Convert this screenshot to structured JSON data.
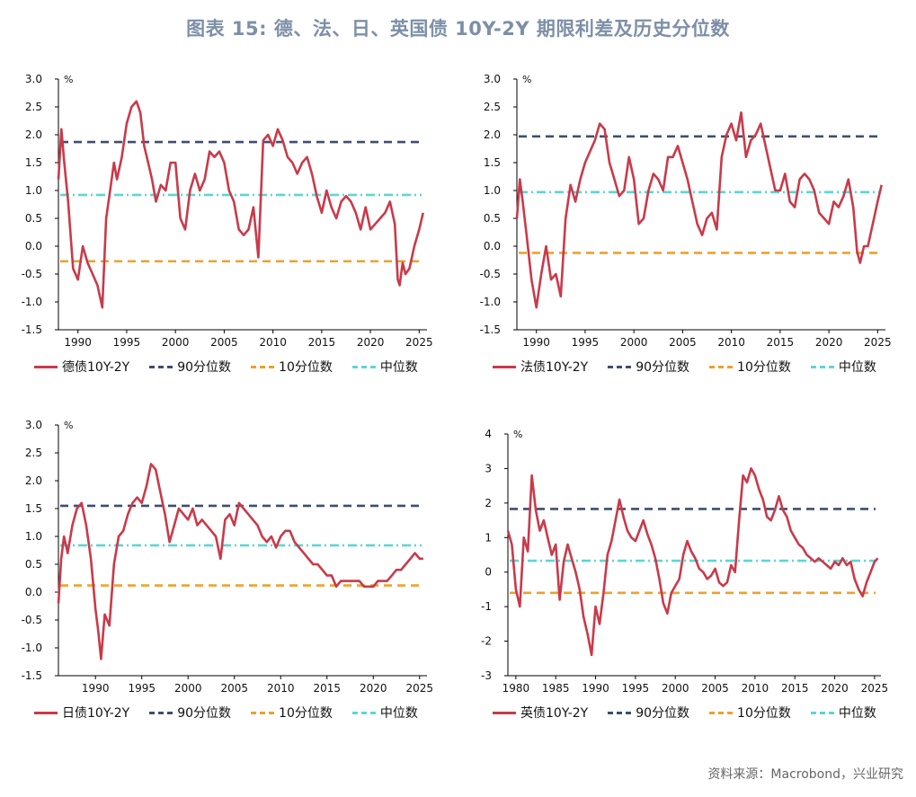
{
  "title": "图表 15: 德、法、日、英国债 10Y-2Y 期限利差及历史分位数",
  "source": "资料来源：Macrobond，兴业研究",
  "colors": {
    "series": "#c93a4a",
    "p90": "#3f4e6e",
    "p10": "#f0a02a",
    "median": "#5ed6d2"
  },
  "chart_data": [
    {
      "type": "line",
      "unit": "%",
      "ylim": [
        -1.5,
        3.0
      ],
      "yticks": [
        "3.0",
        "2.5",
        "2.0",
        "1.5",
        "1.0",
        "0.5",
        "0.0",
        "-0.5",
        "-1.0",
        "-1.5"
      ],
      "xlim": [
        1988.0,
        2025.8
      ],
      "xticks": [
        "1990",
        "1995",
        "2000",
        "2005",
        "2010",
        "2015",
        "2020",
        "2025"
      ],
      "legend": [
        "德债10Y-2Y",
        "90分位数",
        "10分位数",
        "中位数"
      ],
      "p90": 1.87,
      "p10": -0.27,
      "median": 0.92,
      "x": [
        1988.0,
        1988.3,
        1988.6,
        1989.0,
        1989.5,
        1990.0,
        1990.5,
        1991.0,
        1991.5,
        1992.0,
        1992.5,
        1992.9,
        1993.3,
        1993.7,
        1994.0,
        1994.5,
        1995.0,
        1995.5,
        1996.0,
        1996.4,
        1996.8,
        1997.2,
        1997.6,
        1998.0,
        1998.5,
        1999.0,
        1999.5,
        2000.0,
        2000.5,
        2001.0,
        2001.5,
        2002.0,
        2002.5,
        2003.0,
        2003.5,
        2004.0,
        2004.5,
        2005.0,
        2005.5,
        2006.0,
        2006.5,
        2007.0,
        2007.5,
        2008.0,
        2008.5,
        2009.0,
        2009.5,
        2010.0,
        2010.5,
        2011.0,
        2011.5,
        2012.0,
        2012.5,
        2013.0,
        2013.5,
        2014.0,
        2014.5,
        2015.0,
        2015.5,
        2016.0,
        2016.5,
        2017.0,
        2017.5,
        2018.0,
        2018.5,
        2019.0,
        2019.5,
        2020.0,
        2020.5,
        2021.0,
        2021.5,
        2022.0,
        2022.5,
        2022.8,
        2023.0,
        2023.3,
        2023.6,
        2024.0,
        2024.5,
        2025.0,
        2025.4
      ],
      "y": [
        1.2,
        2.1,
        1.5,
        0.8,
        -0.4,
        -0.6,
        0.0,
        -0.3,
        -0.5,
        -0.7,
        -1.1,
        0.5,
        1.0,
        1.5,
        1.2,
        1.6,
        2.2,
        2.5,
        2.6,
        2.4,
        1.8,
        1.5,
        1.2,
        0.8,
        1.1,
        1.0,
        1.5,
        1.5,
        0.5,
        0.3,
        1.0,
        1.3,
        1.0,
        1.2,
        1.7,
        1.6,
        1.7,
        1.5,
        1.0,
        0.8,
        0.3,
        0.2,
        0.3,
        0.7,
        -0.2,
        1.9,
        2.0,
        1.8,
        2.1,
        1.9,
        1.6,
        1.5,
        1.3,
        1.5,
        1.6,
        1.3,
        0.9,
        0.6,
        1.0,
        0.7,
        0.5,
        0.8,
        0.9,
        0.8,
        0.6,
        0.3,
        0.7,
        0.3,
        0.4,
        0.5,
        0.6,
        0.8,
        0.4,
        -0.6,
        -0.7,
        -0.3,
        -0.5,
        -0.4,
        0.0,
        0.3,
        0.6
      ]
    },
    {
      "type": "line",
      "unit": "%",
      "ylim": [
        -1.5,
        3.0
      ],
      "yticks": [
        "3.0",
        "2.5",
        "2.0",
        "1.5",
        "1.0",
        "0.5",
        "0.0",
        "-0.5",
        "-1.0",
        "-1.5"
      ],
      "xlim": [
        1988.0,
        2025.8
      ],
      "xticks": [
        "1990",
        "1995",
        "2000",
        "2005",
        "2010",
        "2015",
        "2020",
        "2025"
      ],
      "legend": [
        "法债10Y-2Y",
        "90分位数",
        "10分位数",
        "中位数"
      ],
      "p90": 1.97,
      "p10": -0.12,
      "median": 0.97,
      "x": [
        1988.0,
        1988.3,
        1988.6,
        1989.0,
        1989.5,
        1990.0,
        1990.5,
        1991.0,
        1991.5,
        1992.0,
        1992.5,
        1993.0,
        1993.5,
        1994.0,
        1994.5,
        1995.0,
        1995.5,
        1996.0,
        1996.5,
        1997.0,
        1997.5,
        1998.0,
        1998.5,
        1999.0,
        1999.5,
        2000.0,
        2000.5,
        2001.0,
        2001.5,
        2002.0,
        2002.5,
        2003.0,
        2003.5,
        2004.0,
        2004.5,
        2005.0,
        2005.5,
        2006.0,
        2006.5,
        2007.0,
        2007.5,
        2008.0,
        2008.5,
        2009.0,
        2009.5,
        2010.0,
        2010.5,
        2011.0,
        2011.5,
        2012.0,
        2012.5,
        2013.0,
        2013.5,
        2014.0,
        2014.5,
        2015.0,
        2015.5,
        2016.0,
        2016.5,
        2017.0,
        2017.5,
        2018.0,
        2018.5,
        2019.0,
        2019.5,
        2020.0,
        2020.5,
        2021.0,
        2021.5,
        2022.0,
        2022.5,
        2022.9,
        2023.2,
        2023.6,
        2024.0,
        2024.5,
        2025.0,
        2025.4
      ],
      "y": [
        0.5,
        1.2,
        0.8,
        0.2,
        -0.6,
        -1.1,
        -0.5,
        0.0,
        -0.6,
        -0.5,
        -0.9,
        0.5,
        1.1,
        0.8,
        1.2,
        1.5,
        1.7,
        1.9,
        2.2,
        2.1,
        1.5,
        1.2,
        0.9,
        1.0,
        1.6,
        1.2,
        0.4,
        0.5,
        1.0,
        1.3,
        1.2,
        1.0,
        1.6,
        1.6,
        1.8,
        1.5,
        1.2,
        0.8,
        0.4,
        0.2,
        0.5,
        0.6,
        0.3,
        1.6,
        2.0,
        2.2,
        1.9,
        2.4,
        1.6,
        1.9,
        2.0,
        2.2,
        1.8,
        1.4,
        1.0,
        1.0,
        1.3,
        0.8,
        0.7,
        1.2,
        1.3,
        1.2,
        1.0,
        0.6,
        0.5,
        0.4,
        0.8,
        0.7,
        0.9,
        1.2,
        0.7,
        -0.1,
        -0.3,
        0.0,
        0.0,
        0.4,
        0.8,
        1.1
      ]
    },
    {
      "type": "line",
      "unit": "%",
      "ylim": [
        -1.5,
        3.0
      ],
      "yticks": [
        "3.0",
        "2.5",
        "2.0",
        "1.5",
        "1.0",
        "0.5",
        "0.0",
        "-0.5",
        "-1.0",
        "-1.5"
      ],
      "xlim": [
        1986.0,
        2025.8
      ],
      "xticks": [
        "1990",
        "1995",
        "2000",
        "2005",
        "2010",
        "2015",
        "2020",
        "2025"
      ],
      "legend": [
        "日债10Y-2Y",
        "90分位数",
        "10分位数",
        "中位数"
      ],
      "p90": 1.55,
      "p10": 0.12,
      "median": 0.84,
      "x": [
        1986.0,
        1986.3,
        1986.6,
        1987.0,
        1987.5,
        1988.0,
        1988.5,
        1989.0,
        1989.5,
        1990.0,
        1990.3,
        1990.6,
        1991.0,
        1991.5,
        1992.0,
        1992.5,
        1993.0,
        1993.5,
        1994.0,
        1994.5,
        1995.0,
        1995.5,
        1996.0,
        1996.5,
        1997.0,
        1997.5,
        1998.0,
        1998.5,
        1999.0,
        1999.5,
        2000.0,
        2000.5,
        2001.0,
        2001.5,
        2002.0,
        2002.5,
        2003.0,
        2003.5,
        2004.0,
        2004.5,
        2005.0,
        2005.5,
        2006.0,
        2006.5,
        2007.0,
        2007.5,
        2008.0,
        2008.5,
        2009.0,
        2009.5,
        2010.0,
        2010.5,
        2011.0,
        2011.5,
        2012.0,
        2012.5,
        2013.0,
        2013.5,
        2014.0,
        2014.5,
        2015.0,
        2015.5,
        2016.0,
        2016.5,
        2017.0,
        2017.5,
        2018.0,
        2018.5,
        2019.0,
        2019.5,
        2020.0,
        2020.5,
        2021.0,
        2021.5,
        2022.0,
        2022.5,
        2023.0,
        2023.5,
        2024.0,
        2024.5,
        2025.0,
        2025.4
      ],
      "y": [
        -0.2,
        0.6,
        1.0,
        0.7,
        1.2,
        1.5,
        1.6,
        1.2,
        0.6,
        -0.3,
        -0.7,
        -1.2,
        -0.4,
        -0.6,
        0.5,
        1.0,
        1.1,
        1.4,
        1.6,
        1.7,
        1.6,
        1.9,
        2.3,
        2.2,
        1.8,
        1.4,
        0.9,
        1.2,
        1.5,
        1.4,
        1.3,
        1.5,
        1.2,
        1.3,
        1.2,
        1.1,
        1.0,
        0.6,
        1.3,
        1.4,
        1.2,
        1.6,
        1.5,
        1.4,
        1.3,
        1.2,
        1.0,
        0.9,
        1.0,
        0.8,
        1.0,
        1.1,
        1.1,
        0.9,
        0.8,
        0.7,
        0.6,
        0.5,
        0.5,
        0.4,
        0.3,
        0.3,
        0.1,
        0.2,
        0.2,
        0.2,
        0.2,
        0.2,
        0.1,
        0.1,
        0.1,
        0.2,
        0.2,
        0.2,
        0.3,
        0.4,
        0.4,
        0.5,
        0.6,
        0.7,
        0.6,
        0.6
      ]
    },
    {
      "type": "line",
      "unit": "%",
      "ylim": [
        -3,
        4
      ],
      "yticks": [
        "4",
        "3",
        "2",
        "1",
        "0",
        "-1",
        "-2",
        "-3"
      ],
      "xlim": [
        1979.0,
        2025.8
      ],
      "xticks": [
        "1980",
        "1985",
        "1990",
        "1995",
        "2000",
        "2005",
        "2010",
        "2015",
        "2020",
        "2025"
      ],
      "legend": [
        "英债10Y-2Y",
        "90分位数",
        "10分位数",
        "中位数"
      ],
      "p90": 1.83,
      "p10": -0.6,
      "median": 0.33,
      "x": [
        1979.0,
        1979.5,
        1980.0,
        1980.5,
        1981.0,
        1981.5,
        1982.0,
        1982.5,
        1983.0,
        1983.5,
        1984.0,
        1984.5,
        1985.0,
        1985.5,
        1986.0,
        1986.5,
        1987.0,
        1987.5,
        1988.0,
        1988.5,
        1989.0,
        1989.5,
        1990.0,
        1990.5,
        1991.0,
        1991.5,
        1992.0,
        1992.5,
        1993.0,
        1993.5,
        1994.0,
        1994.5,
        1995.0,
        1995.5,
        1996.0,
        1996.5,
        1997.0,
        1997.5,
        1998.0,
        1998.5,
        1999.0,
        1999.5,
        2000.0,
        2000.5,
        2001.0,
        2001.5,
        2002.0,
        2002.5,
        2003.0,
        2003.5,
        2004.0,
        2004.5,
        2005.0,
        2005.5,
        2006.0,
        2006.5,
        2007.0,
        2007.5,
        2008.0,
        2008.5,
        2009.0,
        2009.5,
        2010.0,
        2010.5,
        2011.0,
        2011.5,
        2012.0,
        2012.5,
        2013.0,
        2013.5,
        2014.0,
        2014.5,
        2015.0,
        2015.5,
        2016.0,
        2016.5,
        2017.0,
        2017.5,
        2018.0,
        2018.5,
        2019.0,
        2019.5,
        2020.0,
        2020.5,
        2021.0,
        2021.5,
        2022.0,
        2022.5,
        2023.0,
        2023.5,
        2024.0,
        2024.5,
        2025.0,
        2025.4
      ],
      "y": [
        1.2,
        0.8,
        -0.5,
        -1.0,
        1.0,
        0.6,
        2.8,
        1.8,
        1.2,
        1.5,
        1.0,
        0.5,
        0.8,
        -0.8,
        0.3,
        0.8,
        0.4,
        0.0,
        -0.5,
        -1.3,
        -1.8,
        -2.4,
        -1.0,
        -1.5,
        -0.6,
        0.5,
        0.9,
        1.5,
        2.1,
        1.6,
        1.2,
        1.0,
        0.9,
        1.2,
        1.5,
        1.1,
        0.8,
        0.4,
        -0.2,
        -0.9,
        -1.2,
        -0.6,
        -0.4,
        -0.2,
        0.5,
        0.9,
        0.6,
        0.4,
        0.1,
        0.0,
        -0.2,
        -0.1,
        0.1,
        -0.3,
        -0.4,
        -0.3,
        0.2,
        0.0,
        1.5,
        2.8,
        2.6,
        3.0,
        2.8,
        2.4,
        2.1,
        1.6,
        1.5,
        1.8,
        2.2,
        1.8,
        1.6,
        1.2,
        1.0,
        0.8,
        0.7,
        0.5,
        0.4,
        0.3,
        0.4,
        0.3,
        0.2,
        0.1,
        0.3,
        0.2,
        0.4,
        0.2,
        0.3,
        -0.2,
        -0.5,
        -0.7,
        -0.3,
        0.0,
        0.3,
        0.4
      ]
    }
  ]
}
